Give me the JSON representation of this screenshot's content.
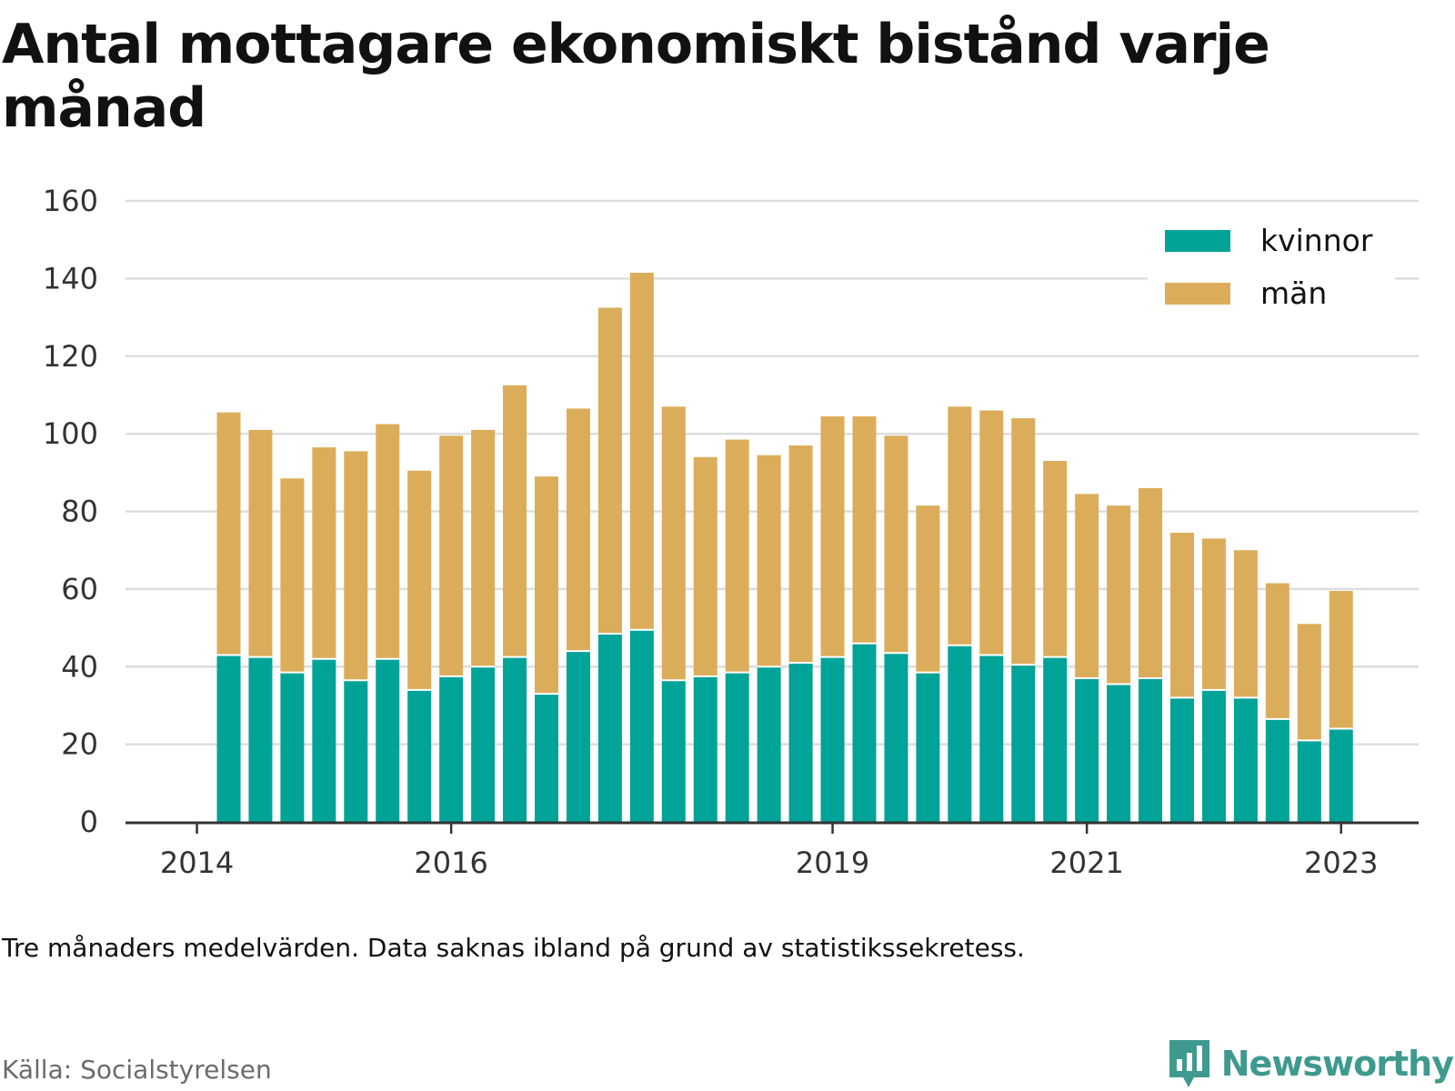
{
  "title": "Antal mottagare ekonomiskt bistånd varje månad",
  "note": "Tre månaders medelvärden. Data saknas ibland på grund av statistikssekretess.",
  "source": "Källa: Socialstyrelsen",
  "brand": {
    "name": "Newsworthy",
    "icon": "newsworthy-logo-icon",
    "color": "#3e9a8e"
  },
  "colors": {
    "kvinnor": "#00a398",
    "man": "#dbad5b",
    "grid": "#dddddd",
    "axis": "#333333",
    "text": "#333333"
  },
  "chart_data": {
    "type": "bar",
    "stacked": true,
    "ylim": [
      0,
      160
    ],
    "yticks": [
      0,
      20,
      40,
      60,
      80,
      100,
      120,
      140,
      160
    ],
    "grid": true,
    "legend_position": "top-right",
    "xticks": [
      {
        "label": "2014",
        "pos": -1
      },
      {
        "label": "2016",
        "pos": 7
      },
      {
        "label": "2019",
        "pos": 19
      },
      {
        "label": "2021",
        "pos": 27
      },
      {
        "label": "2023",
        "pos": 35
      }
    ],
    "categories": [
      "",
      "",
      "",
      "",
      "",
      "",
      "",
      "",
      "",
      "",
      "",
      "",
      "",
      "",
      "",
      "",
      "",
      "",
      "",
      "",
      "",
      "",
      "",
      "",
      "",
      "",
      "",
      "",
      "",
      "",
      "",
      "",
      "",
      "",
      "",
      ""
    ],
    "series": [
      {
        "name": "kvinnor",
        "color": "#00a398",
        "values": [
          43,
          42.5,
          38.5,
          42,
          36.5,
          42,
          34,
          37.5,
          40,
          42.5,
          33,
          44,
          48.5,
          49.5,
          36.5,
          37.5,
          38.5,
          40,
          41,
          42.5,
          46,
          43.5,
          38.5,
          45.5,
          43,
          40.5,
          42.5,
          37,
          35.5,
          37,
          32,
          34,
          32,
          26.5,
          21,
          24
        ]
      },
      {
        "name": "män",
        "color": "#dbad5b",
        "values": [
          62.5,
          58.5,
          50,
          54.5,
          59,
          60.5,
          56.5,
          62,
          61,
          70,
          56,
          62.5,
          84,
          92,
          70.5,
          56.5,
          60,
          54.5,
          56,
          62,
          58.5,
          56,
          43,
          61.5,
          63,
          63.5,
          50.5,
          47.5,
          46,
          49,
          42.5,
          39,
          38,
          35,
          30,
          35.5
        ]
      }
    ]
  }
}
